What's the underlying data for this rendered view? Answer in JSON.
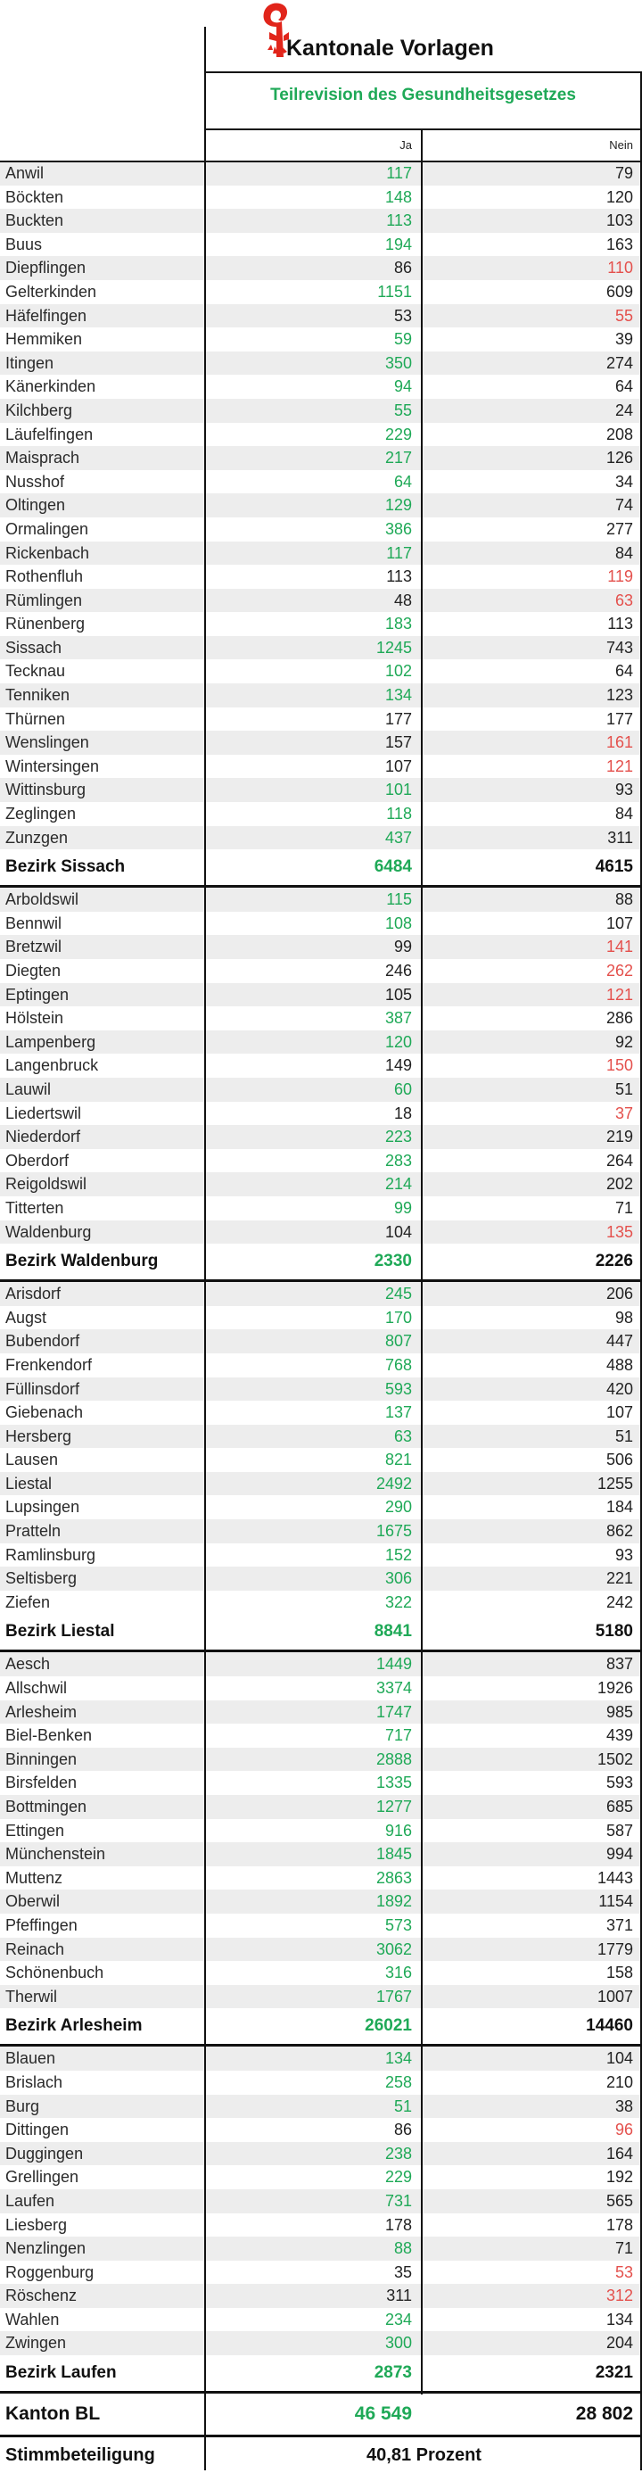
{
  "header": {
    "title": "Kantonale Vorlagen",
    "subtitle": "Teilrevision des Gesundheitsgesetzes",
    "col_ja": "Ja",
    "col_nein": "Nein",
    "logo_icon": "basel-landschaft-crozier-icon"
  },
  "colors": {
    "ja_majority": "#1fa957",
    "nein_majority": "#e4504c",
    "neutral": "#222222"
  },
  "bezirke": [
    {
      "rows": [
        {
          "name": "Anwil",
          "ja": "117",
          "nein": "79"
        },
        {
          "name": "Böckten",
          "ja": "148",
          "nein": "120"
        },
        {
          "name": "Buckten",
          "ja": "113",
          "nein": "103"
        },
        {
          "name": "Buus",
          "ja": "194",
          "nein": "163"
        },
        {
          "name": "Diepflingen",
          "ja": "86",
          "nein": "110"
        },
        {
          "name": "Gelterkinden",
          "ja": "1151",
          "nein": "609"
        },
        {
          "name": "Häfelfingen",
          "ja": "53",
          "nein": "55"
        },
        {
          "name": "Hemmiken",
          "ja": "59",
          "nein": "39"
        },
        {
          "name": "Itingen",
          "ja": "350",
          "nein": "274"
        },
        {
          "name": "Känerkinden",
          "ja": "94",
          "nein": "64"
        },
        {
          "name": "Kilchberg",
          "ja": "55",
          "nein": "24"
        },
        {
          "name": "Läufelfingen",
          "ja": "229",
          "nein": "208"
        },
        {
          "name": "Maisprach",
          "ja": "217",
          "nein": "126"
        },
        {
          "name": "Nusshof",
          "ja": "64",
          "nein": "34"
        },
        {
          "name": "Oltingen",
          "ja": "129",
          "nein": "74"
        },
        {
          "name": "Ormalingen",
          "ja": "386",
          "nein": "277"
        },
        {
          "name": "Rickenbach",
          "ja": "117",
          "nein": "84"
        },
        {
          "name": "Rothenfluh",
          "ja": "113",
          "nein": "119"
        },
        {
          "name": "Rümlingen",
          "ja": "48",
          "nein": "63"
        },
        {
          "name": "Rünenberg",
          "ja": "183",
          "nein": "113"
        },
        {
          "name": "Sissach",
          "ja": "1245",
          "nein": "743"
        },
        {
          "name": "Tecknau",
          "ja": "102",
          "nein": "64"
        },
        {
          "name": "Tenniken",
          "ja": "134",
          "nein": "123"
        },
        {
          "name": "Thürnen",
          "ja": "177",
          "nein": "177"
        },
        {
          "name": "Wenslingen",
          "ja": "157",
          "nein": "161"
        },
        {
          "name": "Wintersingen",
          "ja": "107",
          "nein": "121"
        },
        {
          "name": "Wittinsburg",
          "ja": "101",
          "nein": "93"
        },
        {
          "name": "Zeglingen",
          "ja": "118",
          "nein": "84"
        },
        {
          "name": "Zunzgen",
          "ja": "437",
          "nein": "311"
        }
      ],
      "total": {
        "name": "Bezirk Sissach",
        "ja": "6484",
        "nein": "4615"
      }
    },
    {
      "rows": [
        {
          "name": "Arboldswil",
          "ja": "115",
          "nein": "88"
        },
        {
          "name": "Bennwil",
          "ja": "108",
          "nein": "107"
        },
        {
          "name": "Bretzwil",
          "ja": "99",
          "nein": "141"
        },
        {
          "name": "Diegten",
          "ja": "246",
          "nein": "262"
        },
        {
          "name": "Eptingen",
          "ja": "105",
          "nein": "121"
        },
        {
          "name": "Hölstein",
          "ja": "387",
          "nein": "286"
        },
        {
          "name": "Lampenberg",
          "ja": "120",
          "nein": "92"
        },
        {
          "name": "Langenbruck",
          "ja": "149",
          "nein": "150"
        },
        {
          "name": "Lauwil",
          "ja": "60",
          "nein": "51"
        },
        {
          "name": "Liedertswil",
          "ja": "18",
          "nein": "37"
        },
        {
          "name": "Niederdorf",
          "ja": "223",
          "nein": "219"
        },
        {
          "name": "Oberdorf",
          "ja": "283",
          "nein": "264"
        },
        {
          "name": "Reigoldswil",
          "ja": "214",
          "nein": "202"
        },
        {
          "name": "Titterten",
          "ja": "99",
          "nein": "71"
        },
        {
          "name": "Waldenburg",
          "ja": "104",
          "nein": "135"
        }
      ],
      "total": {
        "name": "Bezirk Waldenburg",
        "ja": "2330",
        "nein": "2226"
      }
    },
    {
      "rows": [
        {
          "name": "Arisdorf",
          "ja": "245",
          "nein": "206"
        },
        {
          "name": "Augst",
          "ja": "170",
          "nein": "98"
        },
        {
          "name": "Bubendorf",
          "ja": "807",
          "nein": "447"
        },
        {
          "name": "Frenkendorf",
          "ja": "768",
          "nein": "488"
        },
        {
          "name": "Füllinsdorf",
          "ja": "593",
          "nein": "420"
        },
        {
          "name": "Giebenach",
          "ja": "137",
          "nein": "107"
        },
        {
          "name": "Hersberg",
          "ja": "63",
          "nein": "51"
        },
        {
          "name": "Lausen",
          "ja": "821",
          "nein": "506"
        },
        {
          "name": "Liestal",
          "ja": "2492",
          "nein": "1255"
        },
        {
          "name": "Lupsingen",
          "ja": "290",
          "nein": "184"
        },
        {
          "name": "Pratteln",
          "ja": "1675",
          "nein": "862"
        },
        {
          "name": "Ramlinsburg",
          "ja": "152",
          "nein": "93"
        },
        {
          "name": "Seltisberg",
          "ja": "306",
          "nein": "221"
        },
        {
          "name": "Ziefen",
          "ja": "322",
          "nein": "242"
        }
      ],
      "total": {
        "name": "Bezirk Liestal",
        "ja": "8841",
        "nein": "5180"
      }
    },
    {
      "rows": [
        {
          "name": "Aesch",
          "ja": "1449",
          "nein": "837"
        },
        {
          "name": "Allschwil",
          "ja": "3374",
          "nein": "1926"
        },
        {
          "name": "Arlesheim",
          "ja": "1747",
          "nein": "985"
        },
        {
          "name": "Biel-Benken",
          "ja": "717",
          "nein": "439"
        },
        {
          "name": "Binningen",
          "ja": "2888",
          "nein": "1502"
        },
        {
          "name": "Birsfelden",
          "ja": "1335",
          "nein": "593"
        },
        {
          "name": "Bottmingen",
          "ja": "1277",
          "nein": "685"
        },
        {
          "name": "Ettingen",
          "ja": "916",
          "nein": "587"
        },
        {
          "name": "Münchenstein",
          "ja": "1845",
          "nein": "994"
        },
        {
          "name": "Muttenz",
          "ja": "2863",
          "nein": "1443"
        },
        {
          "name": "Oberwil",
          "ja": "1892",
          "nein": "1154"
        },
        {
          "name": "Pfeffingen",
          "ja": "573",
          "nein": "371"
        },
        {
          "name": "Reinach",
          "ja": "3062",
          "nein": "1779"
        },
        {
          "name": "Schönenbuch",
          "ja": "316",
          "nein": "158"
        },
        {
          "name": "Therwil",
          "ja": "1767",
          "nein": "1007"
        }
      ],
      "total": {
        "name": "Bezirk Arlesheim",
        "ja": "26021",
        "nein": "14460"
      }
    },
    {
      "rows": [
        {
          "name": "Blauen",
          "ja": "134",
          "nein": "104"
        },
        {
          "name": "Brislach",
          "ja": "258",
          "nein": "210"
        },
        {
          "name": "Burg",
          "ja": "51",
          "nein": "38"
        },
        {
          "name": "Dittingen",
          "ja": "86",
          "nein": "96"
        },
        {
          "name": "Duggingen",
          "ja": "238",
          "nein": "164"
        },
        {
          "name": "Grellingen",
          "ja": "229",
          "nein": "192"
        },
        {
          "name": "Laufen",
          "ja": "731",
          "nein": "565"
        },
        {
          "name": "Liesberg",
          "ja": "178",
          "nein": "178"
        },
        {
          "name": "Nenzlingen",
          "ja": "88",
          "nein": "71"
        },
        {
          "name": "Roggenburg",
          "ja": "35",
          "nein": "53"
        },
        {
          "name": "Röschenz",
          "ja": "311",
          "nein": "312"
        },
        {
          "name": "Wahlen",
          "ja": "234",
          "nein": "134"
        },
        {
          "name": "Zwingen",
          "ja": "300",
          "nein": "204"
        }
      ],
      "total": {
        "name": "Bezirk Laufen",
        "ja": "2873",
        "nein": "2321"
      }
    }
  ],
  "kanton": {
    "name": "Kanton BL",
    "ja": "46 549",
    "nein": "28 802"
  },
  "stimmbeteiligung": {
    "name": "Stimmbeteiligung",
    "value": "40,81 Prozent"
  }
}
